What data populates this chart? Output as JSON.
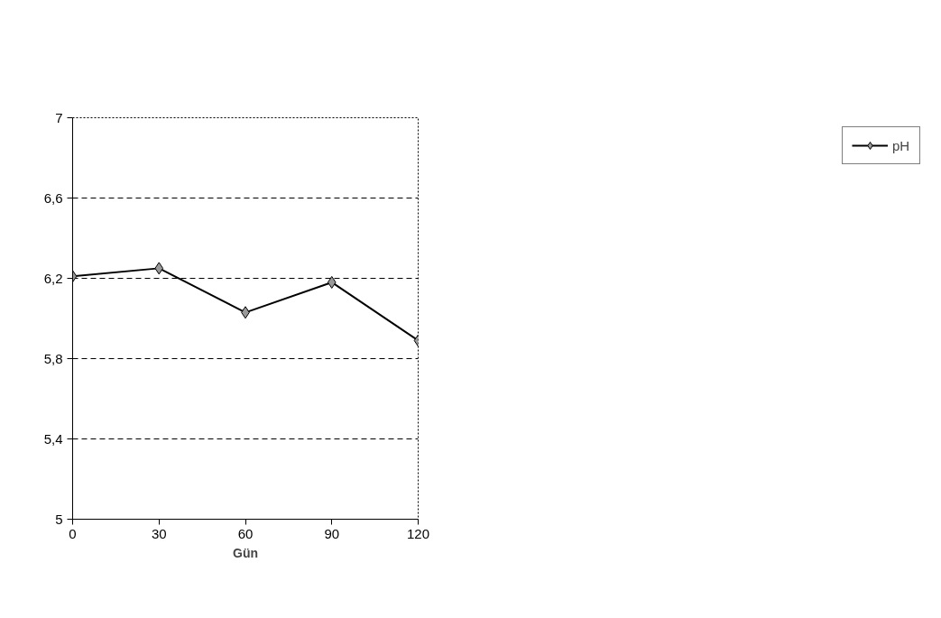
{
  "chart_data": {
    "type": "line",
    "xlabel": "Gün",
    "x": [
      0,
      30,
      60,
      90,
      120
    ],
    "series": [
      {
        "name": "pH",
        "color": "#000000",
        "values": [
          6.21,
          6.25,
          6.03,
          6.18,
          5.89
        ]
      }
    ],
    "xlim": [
      0,
      120
    ],
    "xticks": [
      0,
      30,
      60,
      90,
      120
    ],
    "ylim": [
      5,
      7
    ],
    "yticks": [
      5,
      {
        "value": 5.4,
        "label": "5,4"
      },
      {
        "value": 5.8,
        "label": "5,8"
      },
      {
        "value": 6.2,
        "label": "6,2"
      },
      {
        "value": 6.6,
        "label": "6,6"
      },
      7
    ],
    "grid": "y",
    "legend": "right",
    "marker": "diamond",
    "line_style": "solid"
  }
}
